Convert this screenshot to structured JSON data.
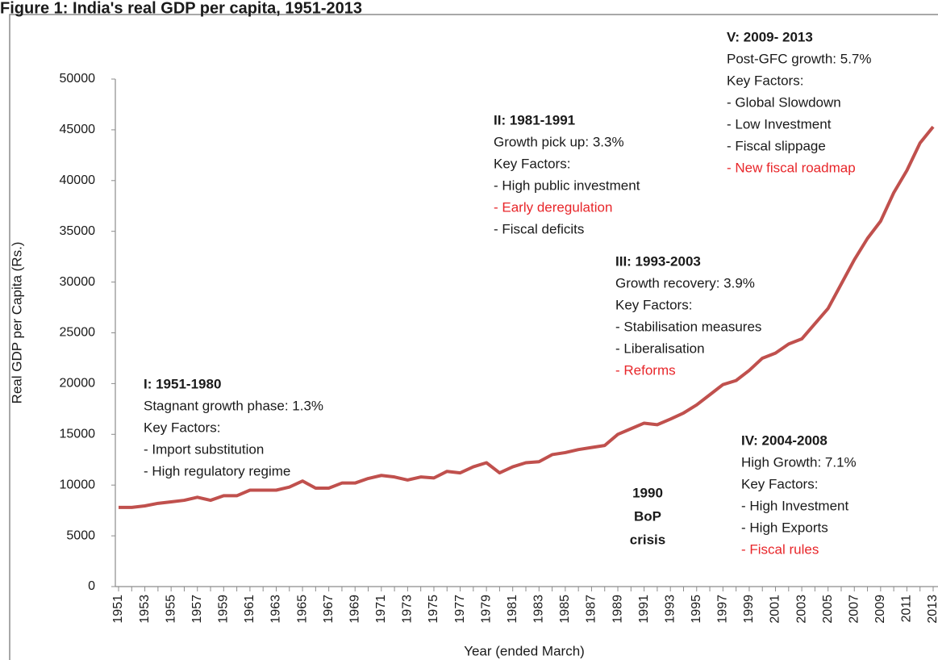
{
  "chart_data": {
    "type": "line",
    "title": "Figure 1: India's real GDP per capita, 1951-2013",
    "x_label": "Year (ended March)",
    "y_label": "Real GDP per Capita (Rs.)",
    "categories": [
      "1951",
      null,
      "1953",
      null,
      "1955",
      null,
      "1957",
      null,
      "1959",
      null,
      "1961",
      null,
      "1963",
      null,
      "1965",
      null,
      "1967",
      null,
      "1969",
      null,
      "1971",
      null,
      "1973",
      null,
      "1975",
      null,
      "1977",
      null,
      "1979",
      null,
      "1981",
      null,
      "1983",
      null,
      "1985",
      null,
      "1987",
      null,
      "1989",
      null,
      "1991",
      null,
      "1993",
      null,
      "1995",
      null,
      "1997",
      null,
      "1999",
      null,
      "2001",
      null,
      "2003",
      null,
      "2005",
      null,
      "2007",
      null,
      "2009",
      null,
      "2011",
      null,
      "2013"
    ],
    "series": [
      {
        "name": "Real GDP per Capita",
        "color": "#c0504d",
        "values": [
          7800,
          7800,
          7950,
          8200,
          8350,
          8500,
          8800,
          8500,
          8950,
          8950,
          9500,
          9500,
          9500,
          9800,
          10400,
          9700,
          9700,
          10200,
          10200,
          10650,
          10950,
          10800,
          10500,
          10800,
          10700,
          11350,
          11200,
          11800,
          12200,
          11200,
          11800,
          12200,
          12300,
          13000,
          13200,
          13500,
          13700,
          13900,
          15000,
          15550,
          16100,
          15950,
          16500,
          17100,
          17900,
          18900,
          19900,
          20300,
          21300,
          22500,
          23000,
          23900,
          24400,
          25900,
          27400,
          29800,
          32200,
          34300,
          36000,
          38800,
          41000,
          43700,
          45300
        ]
      }
    ],
    "ylim": [
      0,
      50000
    ],
    "yticks": [
      0,
      5000,
      10000,
      15000,
      20000,
      25000,
      30000,
      35000,
      40000,
      45000,
      50000
    ],
    "highlight_color": "#e8262a",
    "annotations": [
      {
        "title": "I: 1951-1980",
        "lines": [
          "Stagnant growth phase: 1.3%",
          "Key Factors:",
          "- Import substitution",
          "- High regulatory regime"
        ],
        "highlighted": []
      },
      {
        "title": "II: 1981-1991",
        "lines": [
          "Growth  pick up: 3.3%",
          "Key Factors:",
          "- High public investment",
          "- Early deregulation",
          "-  Fiscal deficits"
        ],
        "highlighted": [
          3
        ]
      },
      {
        "title": "III: 1993-2003",
        "lines": [
          "Growth  recovery: 3.9%",
          "Key Factors:",
          "- Stabilisation measures",
          "- Liberalisation",
          "-  Reforms"
        ],
        "highlighted": [
          4
        ]
      },
      {
        "title": "IV: 2004-2008",
        "lines": [
          "High Growth: 7.1%",
          "Key Factors:",
          "- High Investment",
          "- High Exports",
          "-  Fiscal rules"
        ],
        "highlighted": [
          4
        ]
      },
      {
        "title": "V: 2009- 2013",
        "lines": [
          "Post-GFC growth: 5.7%",
          "Key Factors:",
          "- Global Slowdown",
          "- Low Investment",
          "- Fiscal slippage",
          "- New fiscal roadmap"
        ],
        "highlighted": [
          5
        ]
      }
    ],
    "crisis_note": [
      "1990",
      "BoP",
      "crisis"
    ]
  }
}
